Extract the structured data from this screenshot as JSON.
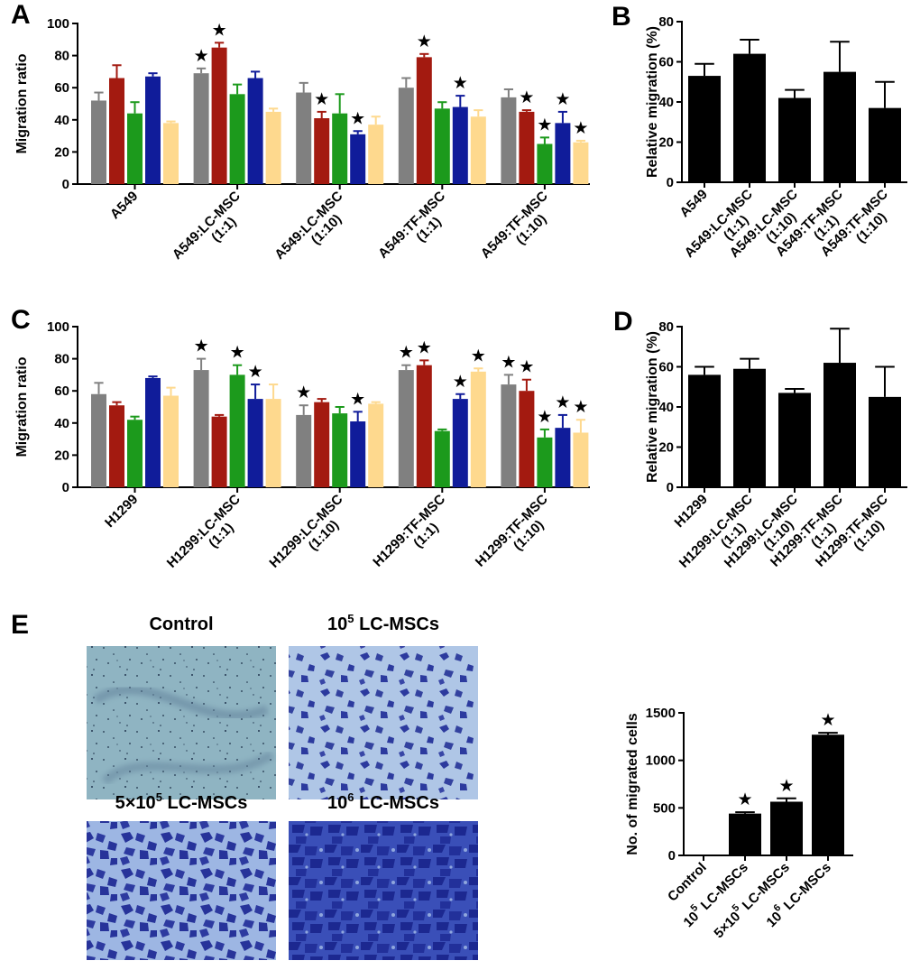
{
  "panel_labels": {
    "A": "A",
    "B": "B",
    "C": "C",
    "D": "D",
    "E": "E"
  },
  "colors": {
    "gray": "#808080",
    "red": "#A31A10",
    "green": "#1C9A1C",
    "blue": "#101C9A",
    "yellow": "#FED98E",
    "black": "#000000",
    "star": "★"
  },
  "chart_data": [
    {
      "id": "A",
      "type": "bar",
      "title": "",
      "ylabel": "Migration ratio",
      "xlabel": "",
      "ylim": [
        0,
        100
      ],
      "yticks": [
        "0",
        "20",
        "40",
        "60",
        "80",
        "100"
      ],
      "categories": [
        "A549",
        "A549:LC-MSC\n(1:1)",
        "A549:LC-MSC\n(1:10)",
        "A549:TF-MSC\n(1:1)",
        "A549:TF-MSC\n(1:10)"
      ],
      "series": [
        {
          "name": "gray",
          "values": [
            52,
            69,
            57,
            60,
            54
          ],
          "errors": [
            5,
            3,
            6,
            6,
            5
          ],
          "stars": [
            false,
            true,
            false,
            false,
            false
          ]
        },
        {
          "name": "red",
          "values": [
            66,
            85,
            41,
            79,
            45
          ],
          "errors": [
            8,
            3,
            4,
            2,
            1
          ],
          "stars": [
            false,
            true,
            true,
            true,
            true
          ]
        },
        {
          "name": "green",
          "values": [
            44,
            56,
            44,
            47,
            25
          ],
          "errors": [
            7,
            6,
            12,
            4,
            4
          ],
          "stars": [
            false,
            false,
            false,
            false,
            true
          ]
        },
        {
          "name": "blue",
          "values": [
            67,
            66,
            31,
            48,
            38
          ],
          "errors": [
            2,
            4,
            2,
            7,
            7
          ],
          "stars": [
            false,
            false,
            true,
            true,
            true
          ]
        },
        {
          "name": "yellow",
          "values": [
            38,
            45,
            37,
            42,
            26
          ],
          "errors": [
            1,
            2,
            5,
            4,
            1
          ],
          "stars": [
            false,
            false,
            false,
            false,
            true
          ]
        }
      ]
    },
    {
      "id": "B",
      "type": "bar",
      "title": "",
      "ylabel": "Relative migration (%)",
      "xlabel": "",
      "ylim": [
        0,
        80
      ],
      "yticks": [
        "0",
        "20",
        "40",
        "60",
        "80"
      ],
      "categories": [
        "A549",
        "A549:LC-MSC\n(1:1)",
        "A549:LC-MSC\n(1:10)",
        "A549:TF-MSC\n(1:1)",
        "A549:TF-MSC\n(1:10)"
      ],
      "series": [
        {
          "name": "black",
          "values": [
            53,
            64,
            42,
            55,
            37
          ],
          "errors": [
            6,
            7,
            4,
            15,
            13
          ],
          "stars": [
            false,
            false,
            false,
            false,
            false
          ]
        }
      ]
    },
    {
      "id": "C",
      "type": "bar",
      "title": "",
      "ylabel": "Migration ratio",
      "xlabel": "",
      "ylim": [
        0,
        100
      ],
      "yticks": [
        "0",
        "20",
        "40",
        "60",
        "80",
        "100"
      ],
      "categories": [
        "H1299",
        "H1299:LC-MSC\n(1:1)",
        "H1299:LC-MSC\n(1:10)",
        "H1299:TF-MSC\n(1:1)",
        "H1299:TF-MSC\n(1:10)"
      ],
      "series": [
        {
          "name": "gray",
          "values": [
            58,
            73,
            45,
            73,
            64
          ],
          "errors": [
            7,
            7,
            6,
            3,
            6
          ],
          "stars": [
            false,
            true,
            true,
            true,
            true
          ]
        },
        {
          "name": "red",
          "values": [
            51,
            44,
            53,
            76,
            60
          ],
          "errors": [
            2,
            1,
            2,
            3,
            7
          ],
          "stars": [
            false,
            false,
            false,
            true,
            true
          ]
        },
        {
          "name": "green",
          "values": [
            42,
            70,
            46,
            35,
            31
          ],
          "errors": [
            2,
            6,
            4,
            1,
            5
          ],
          "stars": [
            false,
            true,
            false,
            false,
            true
          ]
        },
        {
          "name": "blue",
          "values": [
            68,
            55,
            41,
            55,
            37
          ],
          "errors": [
            1,
            9,
            6,
            3,
            8
          ],
          "stars": [
            false,
            true,
            true,
            true,
            true
          ]
        },
        {
          "name": "yellow",
          "values": [
            57,
            55,
            52,
            72,
            34
          ],
          "errors": [
            5,
            9,
            1,
            2,
            8
          ],
          "stars": [
            false,
            false,
            false,
            true,
            true
          ]
        }
      ]
    },
    {
      "id": "D",
      "type": "bar",
      "title": "",
      "ylabel": "Relative migration (%)",
      "xlabel": "",
      "ylim": [
        0,
        80
      ],
      "yticks": [
        "0",
        "20",
        "40",
        "60",
        "80"
      ],
      "categories": [
        "H1299",
        "H1299:LC-MSC\n(1:1)",
        "H1299:LC-MSC\n(1:10)",
        "H1299:TF-MSC\n(1:1)",
        "H1299:TF-MSC\n(1:10)"
      ],
      "series": [
        {
          "name": "black",
          "values": [
            56,
            59,
            47,
            62,
            45
          ],
          "errors": [
            4,
            5,
            2,
            17,
            15
          ],
          "stars": [
            false,
            false,
            false,
            false,
            false
          ]
        }
      ]
    },
    {
      "id": "E",
      "type": "bar",
      "title": "",
      "ylabel": "No. of migrated cells",
      "xlabel": "",
      "ylim": [
        0,
        1500
      ],
      "yticks": [
        "0",
        "500",
        "1000",
        "1500"
      ],
      "categories": [
        [
          {
            "t": "Control"
          }
        ],
        [
          {
            "t": "10"
          },
          {
            "t": "5",
            "sup": true
          },
          {
            "t": " LC-MSCs"
          }
        ],
        [
          {
            "t": "5×10"
          },
          {
            "t": "5",
            "sup": true
          },
          {
            "t": " LC-MSCs"
          }
        ],
        [
          {
            "t": "10"
          },
          {
            "t": "6",
            "sup": true
          },
          {
            "t": " LC-MSCs"
          }
        ]
      ],
      "series": [
        {
          "name": "black",
          "values": [
            0,
            440,
            565,
            1270
          ],
          "errors": [
            0,
            15,
            35,
            20
          ],
          "stars": [
            false,
            true,
            true,
            true
          ]
        }
      ]
    }
  ],
  "micrographs": [
    {
      "title": [
        {
          "t": "Control"
        }
      ],
      "kind": "control"
    },
    {
      "title": [
        {
          "t": "10"
        },
        {
          "t": "5",
          "sup": true
        },
        {
          "t": " LC-MSCs"
        }
      ],
      "kind": "low"
    },
    {
      "title": [
        {
          "t": "5×10"
        },
        {
          "t": "5",
          "sup": true
        },
        {
          "t": " LC-MSCs"
        }
      ],
      "kind": "mid"
    },
    {
      "title": [
        {
          "t": "10"
        },
        {
          "t": "6",
          "sup": true
        },
        {
          "t": " LC-MSCs"
        }
      ],
      "kind": "high"
    }
  ]
}
